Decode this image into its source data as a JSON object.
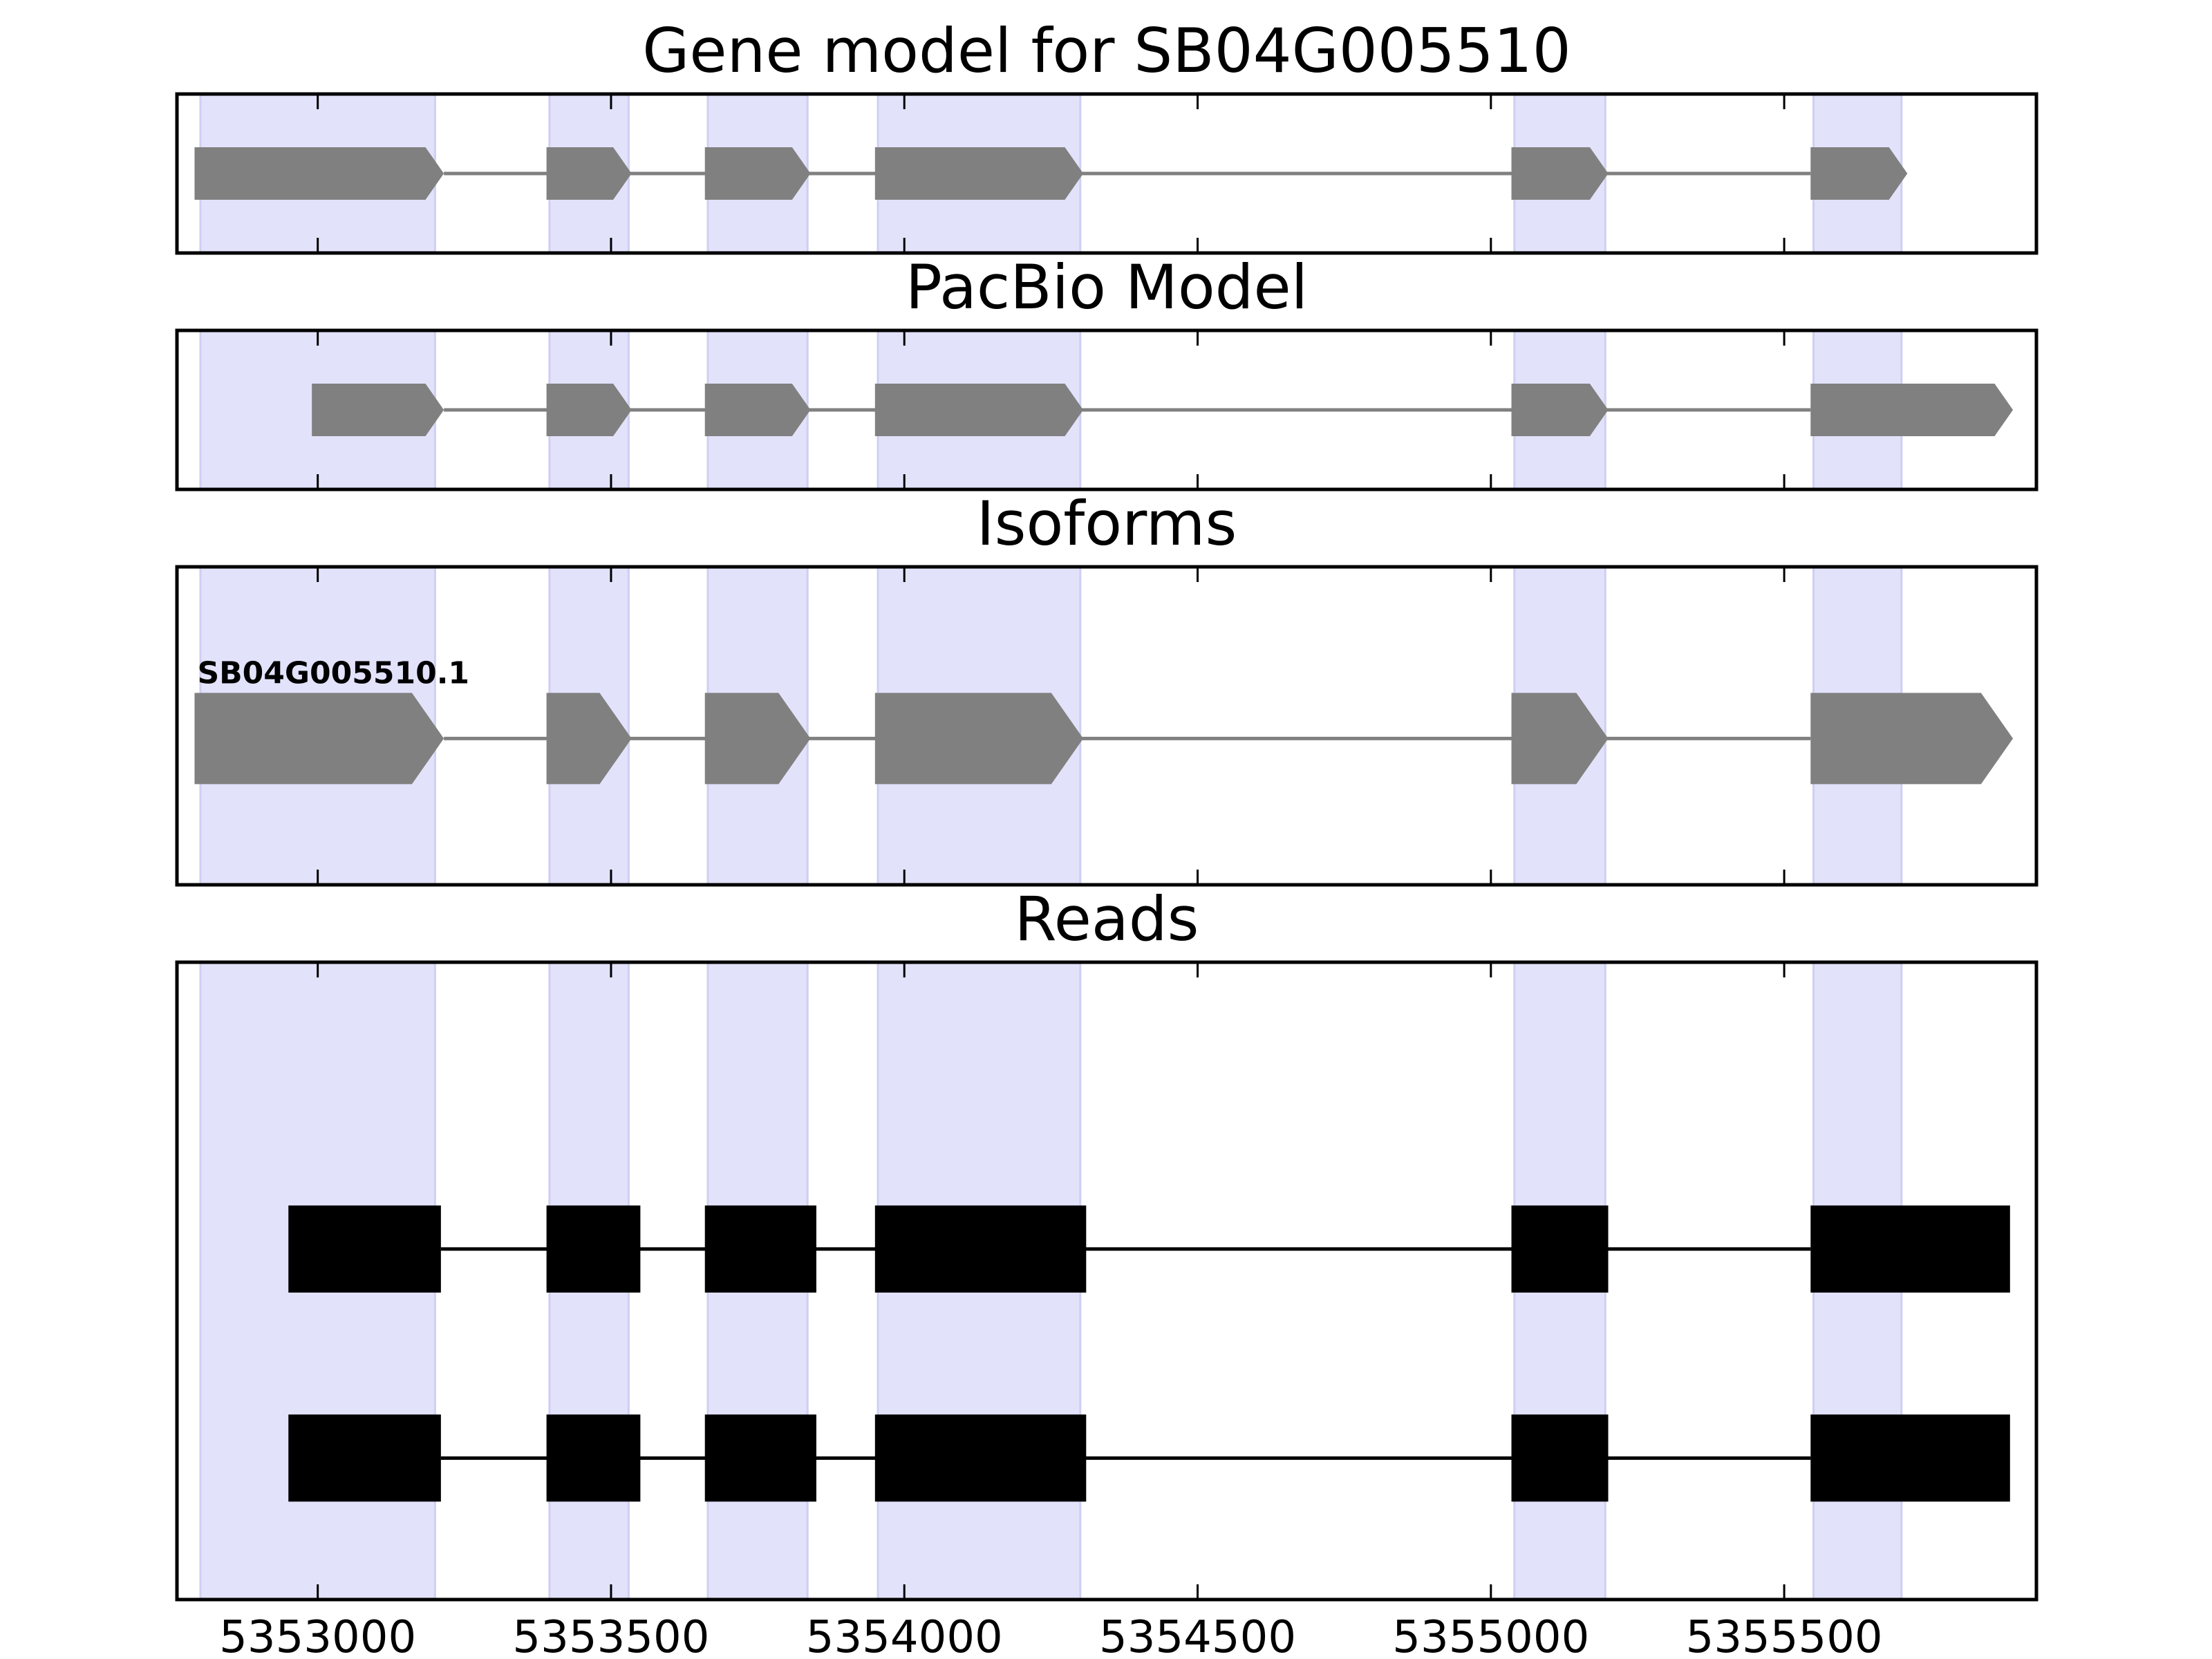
{
  "colors": {
    "background": "#ffffff",
    "exon_band": "#e2e2fb",
    "exon_band_edge": "#cfcff2",
    "gene_feature": "#808080",
    "read_feature": "#000000",
    "frame": "#000000"
  },
  "chart_data": {
    "type": "gene_model",
    "xlim": [
      5352760,
      5355930
    ],
    "x_ticks": [
      5353000,
      5353500,
      5354000,
      5354500,
      5355000,
      5355500
    ],
    "x_tick_labels": [
      "5353000",
      "5353500",
      "5354000",
      "5354500",
      "5355000",
      "5355500"
    ],
    "exon_bands": [
      [
        5352800,
        5353200
      ],
      [
        5353395,
        5353530
      ],
      [
        5353665,
        5353835
      ],
      [
        5353955,
        5354300
      ],
      [
        5355040,
        5355195
      ],
      [
        5355550,
        5355700
      ]
    ],
    "panels": [
      {
        "title": "Gene model for SB04G005510",
        "kind": "gene",
        "tracks": [
          {
            "label": "",
            "exons": [
              [
                5352790,
                5353215
              ],
              [
                5353390,
                5353535
              ],
              [
                5353660,
                5353840
              ],
              [
                5353950,
                5354305
              ],
              [
                5355035,
                5355200
              ],
              [
                5355545,
                5355710
              ]
            ]
          }
        ]
      },
      {
        "title": "PacBio Model",
        "kind": "gene",
        "tracks": [
          {
            "label": "",
            "exons": [
              [
                5352990,
                5353215
              ],
              [
                5353390,
                5353535
              ],
              [
                5353660,
                5353840
              ],
              [
                5353950,
                5354305
              ],
              [
                5355035,
                5355200
              ],
              [
                5355545,
                5355890
              ]
            ]
          }
        ]
      },
      {
        "title": "Isoforms",
        "kind": "gene",
        "tracks": [
          {
            "label": "SB04G005510.1",
            "exons": [
              [
                5352790,
                5353215
              ],
              [
                5353390,
                5353535
              ],
              [
                5353660,
                5353840
              ],
              [
                5353950,
                5354305
              ],
              [
                5355035,
                5355200
              ],
              [
                5355545,
                5355890
              ]
            ]
          }
        ]
      },
      {
        "title": "Reads",
        "kind": "reads",
        "tracks": [
          {
            "label": "",
            "exons": [
              [
                5352950,
                5353210
              ],
              [
                5353390,
                5353550
              ],
              [
                5353660,
                5353850
              ],
              [
                5353950,
                5354310
              ],
              [
                5355035,
                5355200
              ],
              [
                5355545,
                5355885
              ]
            ]
          },
          {
            "label": "",
            "exons": [
              [
                5352950,
                5353210
              ],
              [
                5353390,
                5353550
              ],
              [
                5353660,
                5353850
              ],
              [
                5353950,
                5354310
              ],
              [
                5355035,
                5355200
              ],
              [
                5355545,
                5355885
              ]
            ]
          }
        ]
      }
    ]
  }
}
